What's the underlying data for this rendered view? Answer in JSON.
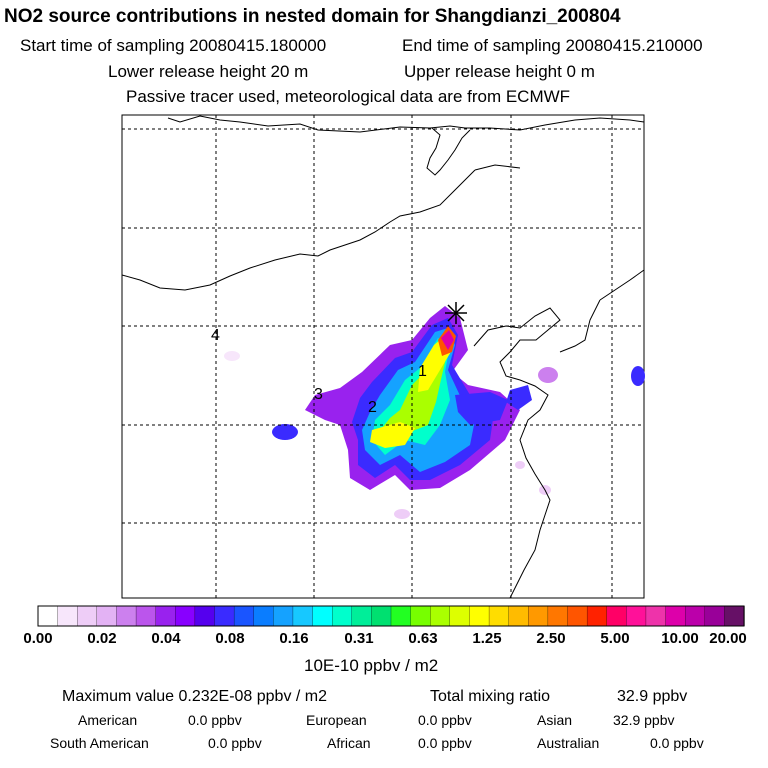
{
  "header": {
    "title": "NO2 source contributions in nested domain for Shangdianzi_200804",
    "start": "Start time of sampling 20080415.180000",
    "end": "End time of sampling 20080415.210000",
    "lower": "Lower release height   20 m",
    "upper": "Upper release height    0 m",
    "tracer": "Passive tracer used, meteorological data are from ECMWF"
  },
  "map": {
    "markers": [
      "1",
      "2",
      "3",
      "4"
    ],
    "station_marker": "star-cross-icon"
  },
  "colorbar": {
    "labels": [
      "0.00",
      "0.02",
      "0.04",
      "0.08",
      "0.16",
      "0.31",
      "0.63",
      "1.25",
      "2.50",
      "5.00",
      "10.00",
      "20.00"
    ],
    "colors": [
      "#ffffff",
      "#f7e6fb",
      "#eecdf7",
      "#e3b2f4",
      "#cc80ee",
      "#bb55ec",
      "#9922ee",
      "#8800ff",
      "#5500ee",
      "#3a2bff",
      "#1a55ff",
      "#0a7dff",
      "#15a2ff",
      "#17c8ff",
      "#00ffff",
      "#00ffcc",
      "#00ee99",
      "#00e070",
      "#22ff22",
      "#77ff00",
      "#aaff00",
      "#ddff00",
      "#ffff00",
      "#ffdd00",
      "#ffbb00",
      "#ff9900",
      "#ff7700",
      "#ff5500",
      "#ff2200",
      "#ff0066",
      "#ff1199",
      "#ee33aa",
      "#dd00aa",
      "#bb00aa",
      "#990099",
      "#661066"
    ],
    "unit": "10E-10 ppbv / m2"
  },
  "stats": {
    "maximum": "Maximum value  0.232E-08 ppbv / m2",
    "total_label": "Total mixing ratio",
    "total_value": "32.9 ppbv",
    "american": "American",
    "american_v": "0.0 ppbv",
    "european": "European",
    "european_v": "0.0 ppbv",
    "asian": "Asian",
    "asian_v": "32.9 ppbv",
    "south_american": "South American",
    "south_american_v": "0.0 ppbv",
    "african": "African",
    "african_v": "0.0 ppbv",
    "australian": "Australian",
    "australian_v": "0.0 ppbv"
  }
}
